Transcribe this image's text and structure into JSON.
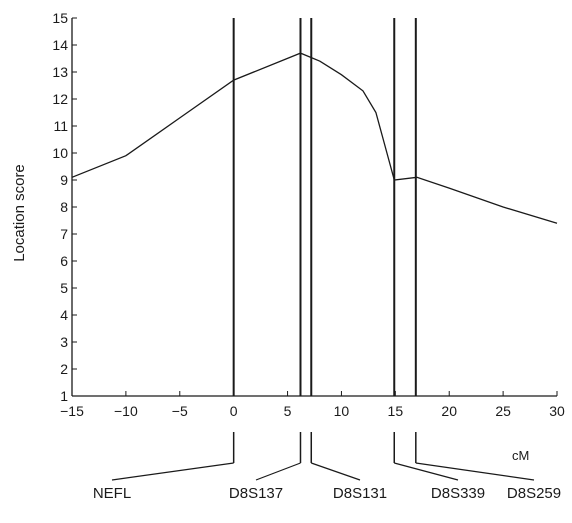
{
  "chart_data": {
    "type": "line",
    "ylabel": "Location score",
    "xunit_label": "cM",
    "xlim": [
      -15,
      30
    ],
    "ylim": [
      1,
      15
    ],
    "xticks": [
      -15,
      -10,
      -5,
      0,
      5,
      10,
      15,
      20,
      25,
      30
    ],
    "yticks": [
      1,
      2,
      3,
      4,
      5,
      6,
      7,
      8,
      9,
      10,
      11,
      12,
      13,
      14,
      15
    ],
    "series": [
      {
        "x": [
          -15,
          -10,
          -5,
          0,
          6.2,
          8,
          10,
          12,
          13.2,
          14.9,
          17,
          20,
          25,
          30
        ],
        "y": [
          9.1,
          9.9,
          11.3,
          12.7,
          13.7,
          13.4,
          12.9,
          12.3,
          11.5,
          9.0,
          9.1,
          8.7,
          8.0,
          7.4
        ]
      }
    ],
    "markers": [
      {
        "label": "NEFL",
        "position": 0
      },
      {
        "label": "D8S137",
        "position": 6.2
      },
      {
        "label": "D8S131",
        "position": 7.2
      },
      {
        "label": "D8S339",
        "position": 14.9
      },
      {
        "label": "D8S259",
        "position": 16.9
      }
    ],
    "colors": {
      "line": "#1a1a1a",
      "axis": "#1a1a1a"
    }
  }
}
